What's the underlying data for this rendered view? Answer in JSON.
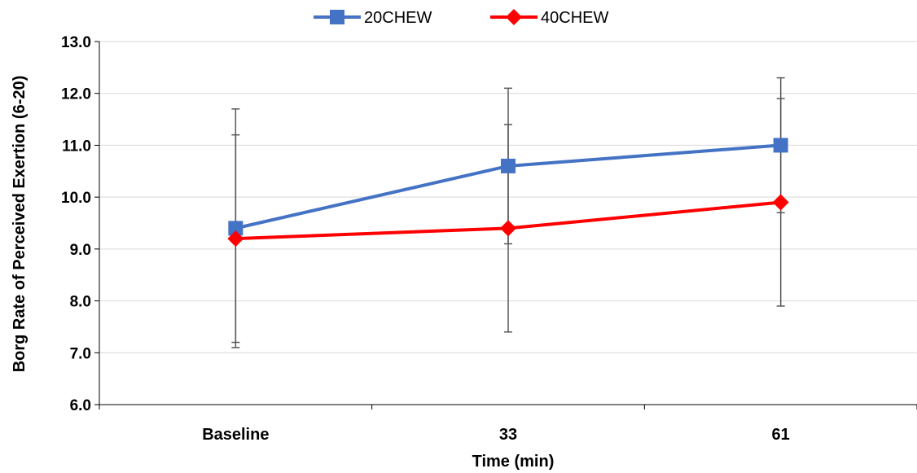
{
  "chart_data": {
    "type": "line",
    "xlabel": "Time (min)",
    "ylabel": "Borg Rate of Perceived Exertion (6-20)",
    "categories": [
      "Baseline",
      "33",
      "61"
    ],
    "ylim": [
      6.0,
      13.0
    ],
    "yticks": [
      "6.0",
      "7.0",
      "8.0",
      "9.0",
      "10.0",
      "11.0",
      "12.0",
      "13.0"
    ],
    "grid": true,
    "legend_position": "top-center",
    "series": [
      {
        "name": "20CHEW",
        "color": "#4472C4",
        "marker": "square",
        "values": [
          9.4,
          10.6,
          11.0
        ],
        "error_low": [
          7.1,
          9.1,
          9.7
        ],
        "error_high": [
          11.7,
          12.1,
          12.3
        ]
      },
      {
        "name": "40CHEW",
        "color": "#FF0000",
        "marker": "diamond",
        "values": [
          9.2,
          9.4,
          9.9
        ],
        "error_low": [
          7.2,
          7.4,
          7.9
        ],
        "error_high": [
          11.2,
          11.4,
          11.9
        ]
      }
    ]
  }
}
